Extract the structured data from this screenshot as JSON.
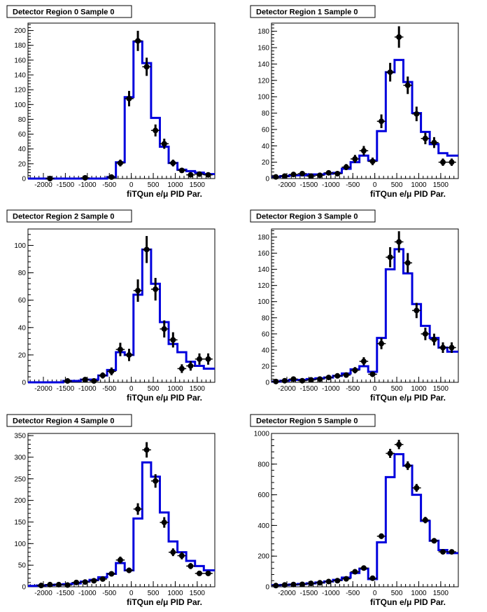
{
  "chart_data": [
    {
      "type": "histogram",
      "title": "Detector Region 0 Sample 0",
      "xlabel": "fiTQun e/μ PID Par.",
      "xlim": [
        -2350,
        1900
      ],
      "ylim": [
        0,
        210
      ],
      "xticks": [
        -2000,
        -1500,
        -1000,
        -500,
        0,
        500,
        1000,
        1500
      ],
      "yticks": [
        0,
        20,
        40,
        60,
        80,
        100,
        120,
        140,
        160,
        180,
        200
      ],
      "bin_edges": [
        -2350,
        -2150,
        -1950,
        -1750,
        -1550,
        -1350,
        -1150,
        -950,
        -750,
        -550,
        -350,
        -150,
        50,
        250,
        450,
        650,
        850,
        1050,
        1250,
        1450,
        1650,
        1900
      ],
      "mc": [
        0,
        0,
        0,
        0,
        0,
        0,
        0,
        0,
        0,
        2,
        22,
        110,
        185,
        156,
        82,
        43,
        21,
        12,
        10,
        8,
        6
      ],
      "data_x": [
        -1850,
        -1050,
        -450,
        -250,
        -50,
        150,
        350,
        550,
        750,
        950,
        1150,
        1350,
        1550,
        1750
      ],
      "data_y": [
        0,
        1,
        2,
        21,
        108,
        186,
        151,
        65,
        47,
        21,
        11,
        5,
        6,
        5
      ]
    },
    {
      "type": "histogram",
      "title": "Detector Region 1 Sample 0",
      "xlabel": "fiTQun e/μ PID Par.",
      "xlim": [
        -2350,
        1900
      ],
      "ylim": [
        0,
        190
      ],
      "xticks": [
        -2000,
        -1500,
        -1000,
        -500,
        0,
        500,
        1000,
        1500
      ],
      "yticks": [
        0,
        20,
        40,
        60,
        80,
        100,
        120,
        140,
        160,
        180
      ],
      "bin_edges": [
        -2350,
        -2150,
        -1950,
        -1750,
        -1550,
        -1350,
        -1150,
        -950,
        -750,
        -550,
        -350,
        -150,
        50,
        250,
        450,
        650,
        850,
        1050,
        1250,
        1450,
        1650,
        1900
      ],
      "mc": [
        2,
        3,
        4,
        4,
        5,
        5,
        6,
        7,
        12,
        20,
        28,
        22,
        58,
        130,
        145,
        118,
        80,
        57,
        42,
        31,
        28
      ],
      "data_x": [
        -2250,
        -2050,
        -1850,
        -1650,
        -1450,
        -1250,
        -1050,
        -850,
        -650,
        -450,
        -250,
        -50,
        150,
        350,
        550,
        750,
        950,
        1150,
        1350,
        1550,
        1750
      ],
      "data_y": [
        2,
        3,
        5,
        6,
        3,
        4,
        7,
        6,
        14,
        24,
        34,
        21,
        70,
        130,
        173,
        114,
        79,
        49,
        44,
        20,
        20
      ]
    },
    {
      "type": "histogram",
      "title": "Detector Region 2 Sample 0",
      "xlabel": "fiTQun e/μ PID Par.",
      "xlim": [
        -2350,
        1900
      ],
      "ylim": [
        0,
        112
      ],
      "xticks": [
        -2000,
        -1500,
        -1000,
        -500,
        0,
        500,
        1000,
        1500
      ],
      "yticks": [
        0,
        20,
        40,
        60,
        80,
        100
      ],
      "bin_edges": [
        -2350,
        -2150,
        -1950,
        -1750,
        -1550,
        -1350,
        -1150,
        -950,
        -750,
        -550,
        -350,
        -150,
        50,
        250,
        450,
        650,
        850,
        1050,
        1250,
        1450,
        1650,
        1900
      ],
      "mc": [
        0,
        0,
        0,
        0,
        1,
        1,
        2,
        2,
        5,
        9,
        22,
        20,
        64,
        97,
        72,
        44,
        28,
        22,
        15,
        12,
        10
      ],
      "data_x": [
        -1450,
        -1050,
        -850,
        -650,
        -450,
        -250,
        -50,
        150,
        350,
        550,
        750,
        950,
        1150,
        1350,
        1550,
        1750
      ],
      "data_y": [
        1,
        2,
        1,
        5,
        8,
        24,
        20,
        67,
        97,
        68,
        39,
        31,
        10,
        12,
        17,
        17
      ]
    },
    {
      "type": "histogram",
      "title": "Detector Region 3 Sample 0",
      "xlabel": "fiTQun e/μ PID Par.",
      "xlim": [
        -2350,
        1900
      ],
      "ylim": [
        0,
        190
      ],
      "xticks": [
        -2000,
        -1500,
        -1000,
        -500,
        0,
        500,
        1000,
        1500
      ],
      "yticks": [
        0,
        20,
        40,
        60,
        80,
        100,
        120,
        140,
        160,
        180
      ],
      "bin_edges": [
        -2350,
        -2150,
        -1950,
        -1750,
        -1550,
        -1350,
        -1150,
        -950,
        -750,
        -550,
        -350,
        -150,
        50,
        250,
        450,
        650,
        850,
        1050,
        1250,
        1450,
        1650,
        1900
      ],
      "mc": [
        1,
        2,
        3,
        3,
        4,
        5,
        6,
        8,
        11,
        16,
        20,
        13,
        55,
        140,
        165,
        135,
        97,
        70,
        55,
        43,
        38
      ],
      "data_x": [
        -2250,
        -2050,
        -1850,
        -1650,
        -1450,
        -1250,
        -1050,
        -850,
        -650,
        -450,
        -250,
        -50,
        150,
        350,
        550,
        750,
        950,
        1150,
        1350,
        1550,
        1750
      ],
      "data_y": [
        1,
        2,
        4,
        2,
        3,
        4,
        6,
        8,
        9,
        15,
        26,
        10,
        48,
        155,
        174,
        148,
        89,
        60,
        53,
        43,
        43
      ]
    },
    {
      "type": "histogram",
      "title": "Detector Region 4 Sample 0",
      "xlabel": "fiTQun e/μ PID Par.",
      "xlim": [
        -2350,
        1900
      ],
      "ylim": [
        0,
        355
      ],
      "xticks": [
        -2000,
        -1500,
        -1000,
        -500,
        0,
        500,
        1000,
        1500
      ],
      "yticks": [
        0,
        50,
        100,
        150,
        200,
        250,
        300,
        350
      ],
      "bin_edges": [
        -2350,
        -2150,
        -1950,
        -1750,
        -1550,
        -1350,
        -1150,
        -950,
        -750,
        -550,
        -350,
        -150,
        50,
        250,
        450,
        650,
        850,
        1050,
        1250,
        1450,
        1650,
        1900
      ],
      "mc": [
        2,
        3,
        4,
        5,
        6,
        8,
        12,
        16,
        22,
        30,
        55,
        38,
        158,
        288,
        255,
        172,
        105,
        80,
        60,
        48,
        38
      ],
      "data_x": [
        -2050,
        -1850,
        -1650,
        -1450,
        -1250,
        -1050,
        -850,
        -650,
        -450,
        -250,
        -50,
        150,
        350,
        550,
        750,
        950,
        1150,
        1350,
        1550,
        1750
      ],
      "data_y": [
        3,
        5,
        5,
        4,
        10,
        11,
        14,
        18,
        30,
        62,
        38,
        180,
        317,
        245,
        149,
        80,
        72,
        48,
        31,
        31
      ]
    },
    {
      "type": "histogram",
      "title": "Detector Region 5 Sample 0",
      "xlabel": "fiTQun e/μ PID Par.",
      "xlim": [
        -2350,
        1900
      ],
      "ylim": [
        0,
        1000
      ],
      "xticks": [
        -2000,
        -1500,
        -1000,
        -500,
        0,
        500,
        1000,
        1500
      ],
      "yticks": [
        0,
        200,
        400,
        600,
        800,
        1000
      ],
      "bin_edges": [
        -2350,
        -2150,
        -1950,
        -1750,
        -1550,
        -1350,
        -1150,
        -950,
        -750,
        -550,
        -350,
        -150,
        50,
        250,
        450,
        650,
        850,
        1050,
        1250,
        1450,
        1650,
        1900
      ],
      "mc": [
        10,
        12,
        15,
        18,
        22,
        28,
        35,
        45,
        60,
        90,
        118,
        50,
        290,
        715,
        865,
        790,
        600,
        430,
        300,
        240,
        220
      ],
      "data_x": [
        -2250,
        -2050,
        -1850,
        -1650,
        -1450,
        -1250,
        -1050,
        -850,
        -650,
        -450,
        -250,
        -50,
        150,
        350,
        550,
        750,
        950,
        1150,
        1350,
        1550,
        1750
      ],
      "data_y": [
        8,
        12,
        15,
        16,
        22,
        26,
        34,
        40,
        52,
        98,
        122,
        56,
        330,
        870,
        928,
        790,
        645,
        435,
        300,
        228,
        228
      ]
    }
  ]
}
